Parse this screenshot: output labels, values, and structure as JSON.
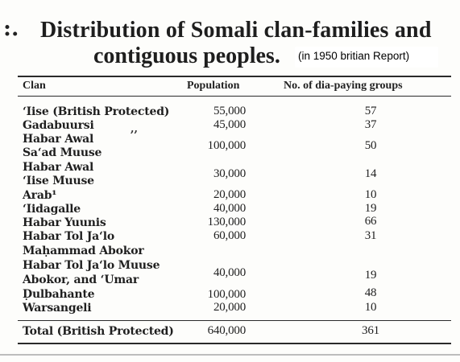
{
  "title": {
    "prefix": ":.",
    "line1": "Distribution of Somali clan-families and",
    "line2": "contiguous peoples.",
    "note": "(in 1950 britian Report)"
  },
  "table": {
    "headers": {
      "clan": "Clan",
      "population": "Population",
      "groups": "No. of dia-paying groups"
    },
    "ditto_mark": ",,",
    "rows": [
      {
        "clan": "‘Iise (British Protected)",
        "population": "55,000",
        "groups": "57"
      },
      {
        "clan": "Gadabuursi",
        "population": "45,000",
        "groups": "37"
      },
      {
        "clan_line1": "Habar Awal",
        "clan_line2": "Sa‘ad Muuse",
        "population": "100,000",
        "groups": "50"
      },
      {
        "clan_line1": "Habar Awal",
        "clan_line2": "‘Iise Muuse",
        "population": "30,000",
        "groups": "14"
      },
      {
        "clan": "Arab¹",
        "population": "20,000",
        "groups": "10"
      },
      {
        "clan": "‘Iidagalle",
        "population": "40,000",
        "groups": "19"
      },
      {
        "clan": "Habar Yuunis",
        "population": "130,000",
        "groups": "66"
      },
      {
        "clan": "Habar Tol Ja‘lo",
        "population": "60,000",
        "groups": "31"
      },
      {
        "clan": "Maḥammad Abokor",
        "population": "",
        "groups": ""
      },
      {
        "clan_line1": "Habar Tol Ja‘lo Muuse",
        "clan_line2": "Abokor, and ‘Umar",
        "population": "40,000",
        "groups": "19"
      },
      {
        "clan": "Ḍulbahante",
        "population": "100,000",
        "groups": "48"
      },
      {
        "clan": "Warsangeli",
        "population": "20,000",
        "groups": "10"
      }
    ],
    "total": {
      "clan": "Total (British Protected)",
      "population": "640,000",
      "groups": "361"
    }
  }
}
